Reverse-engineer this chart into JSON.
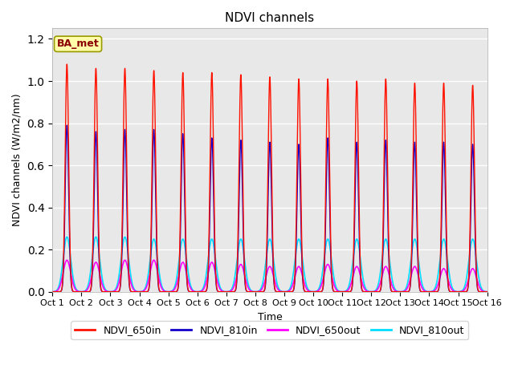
{
  "title": "NDVI channels",
  "xlabel": "Time",
  "ylabel": "NDVI channels (W/m2/nm)",
  "xlim": [
    0,
    15
  ],
  "ylim": [
    0,
    1.25
  ],
  "plot_bg_color": "#e8e8e8",
  "fig_bg_color": "#ffffff",
  "annotation_text": "BA_met",
  "annotation_box_color": "#ffffaa",
  "annotation_box_edge": "#999900",
  "annotation_text_color": "#8B0000",
  "colors": {
    "NDVI_650in": "#ff1100",
    "NDVI_810in": "#1100cc",
    "NDVI_650out": "#ff00ff",
    "NDVI_810out": "#00ddff"
  },
  "peak_650in": [
    1.08,
    1.06,
    1.06,
    1.05,
    1.04,
    1.04,
    1.03,
    1.02,
    1.01,
    1.01,
    1.0,
    1.01,
    0.99,
    0.99,
    0.98
  ],
  "peak_810in": [
    0.79,
    0.76,
    0.77,
    0.77,
    0.75,
    0.73,
    0.72,
    0.71,
    0.7,
    0.73,
    0.71,
    0.72,
    0.71,
    0.71,
    0.7
  ],
  "peak_650out": [
    0.15,
    0.14,
    0.15,
    0.15,
    0.14,
    0.14,
    0.13,
    0.12,
    0.12,
    0.13,
    0.12,
    0.12,
    0.12,
    0.11,
    0.11
  ],
  "peak_810out": [
    0.26,
    0.26,
    0.26,
    0.25,
    0.25,
    0.25,
    0.25,
    0.25,
    0.25,
    0.25,
    0.25,
    0.25,
    0.25,
    0.25,
    0.25
  ],
  "n_days": 15,
  "sigma_in": 0.06,
  "sigma_out": 0.13,
  "n_points": 5000,
  "xtick_labels": [
    "Oct 1",
    "Oct 2",
    "Oct 3",
    "Oct 4",
    "Oct 5",
    "Oct 6",
    "Oct 7",
    "Oct 8",
    "Oct 9",
    "Oct 10",
    "Oct 11",
    "Oct 12",
    "Oct 13",
    "Oct 14",
    "Oct 15",
    "Oct 16"
  ],
  "xtick_positions": [
    0,
    1,
    2,
    3,
    4,
    5,
    6,
    7,
    8,
    9,
    10,
    11,
    12,
    13,
    14,
    15
  ],
  "grid_color": "#ffffff",
  "grid_lw": 1.0,
  "line_lw_in": 1.0,
  "line_lw_out": 1.2,
  "figsize": [
    6.4,
    4.8
  ],
  "dpi": 100
}
